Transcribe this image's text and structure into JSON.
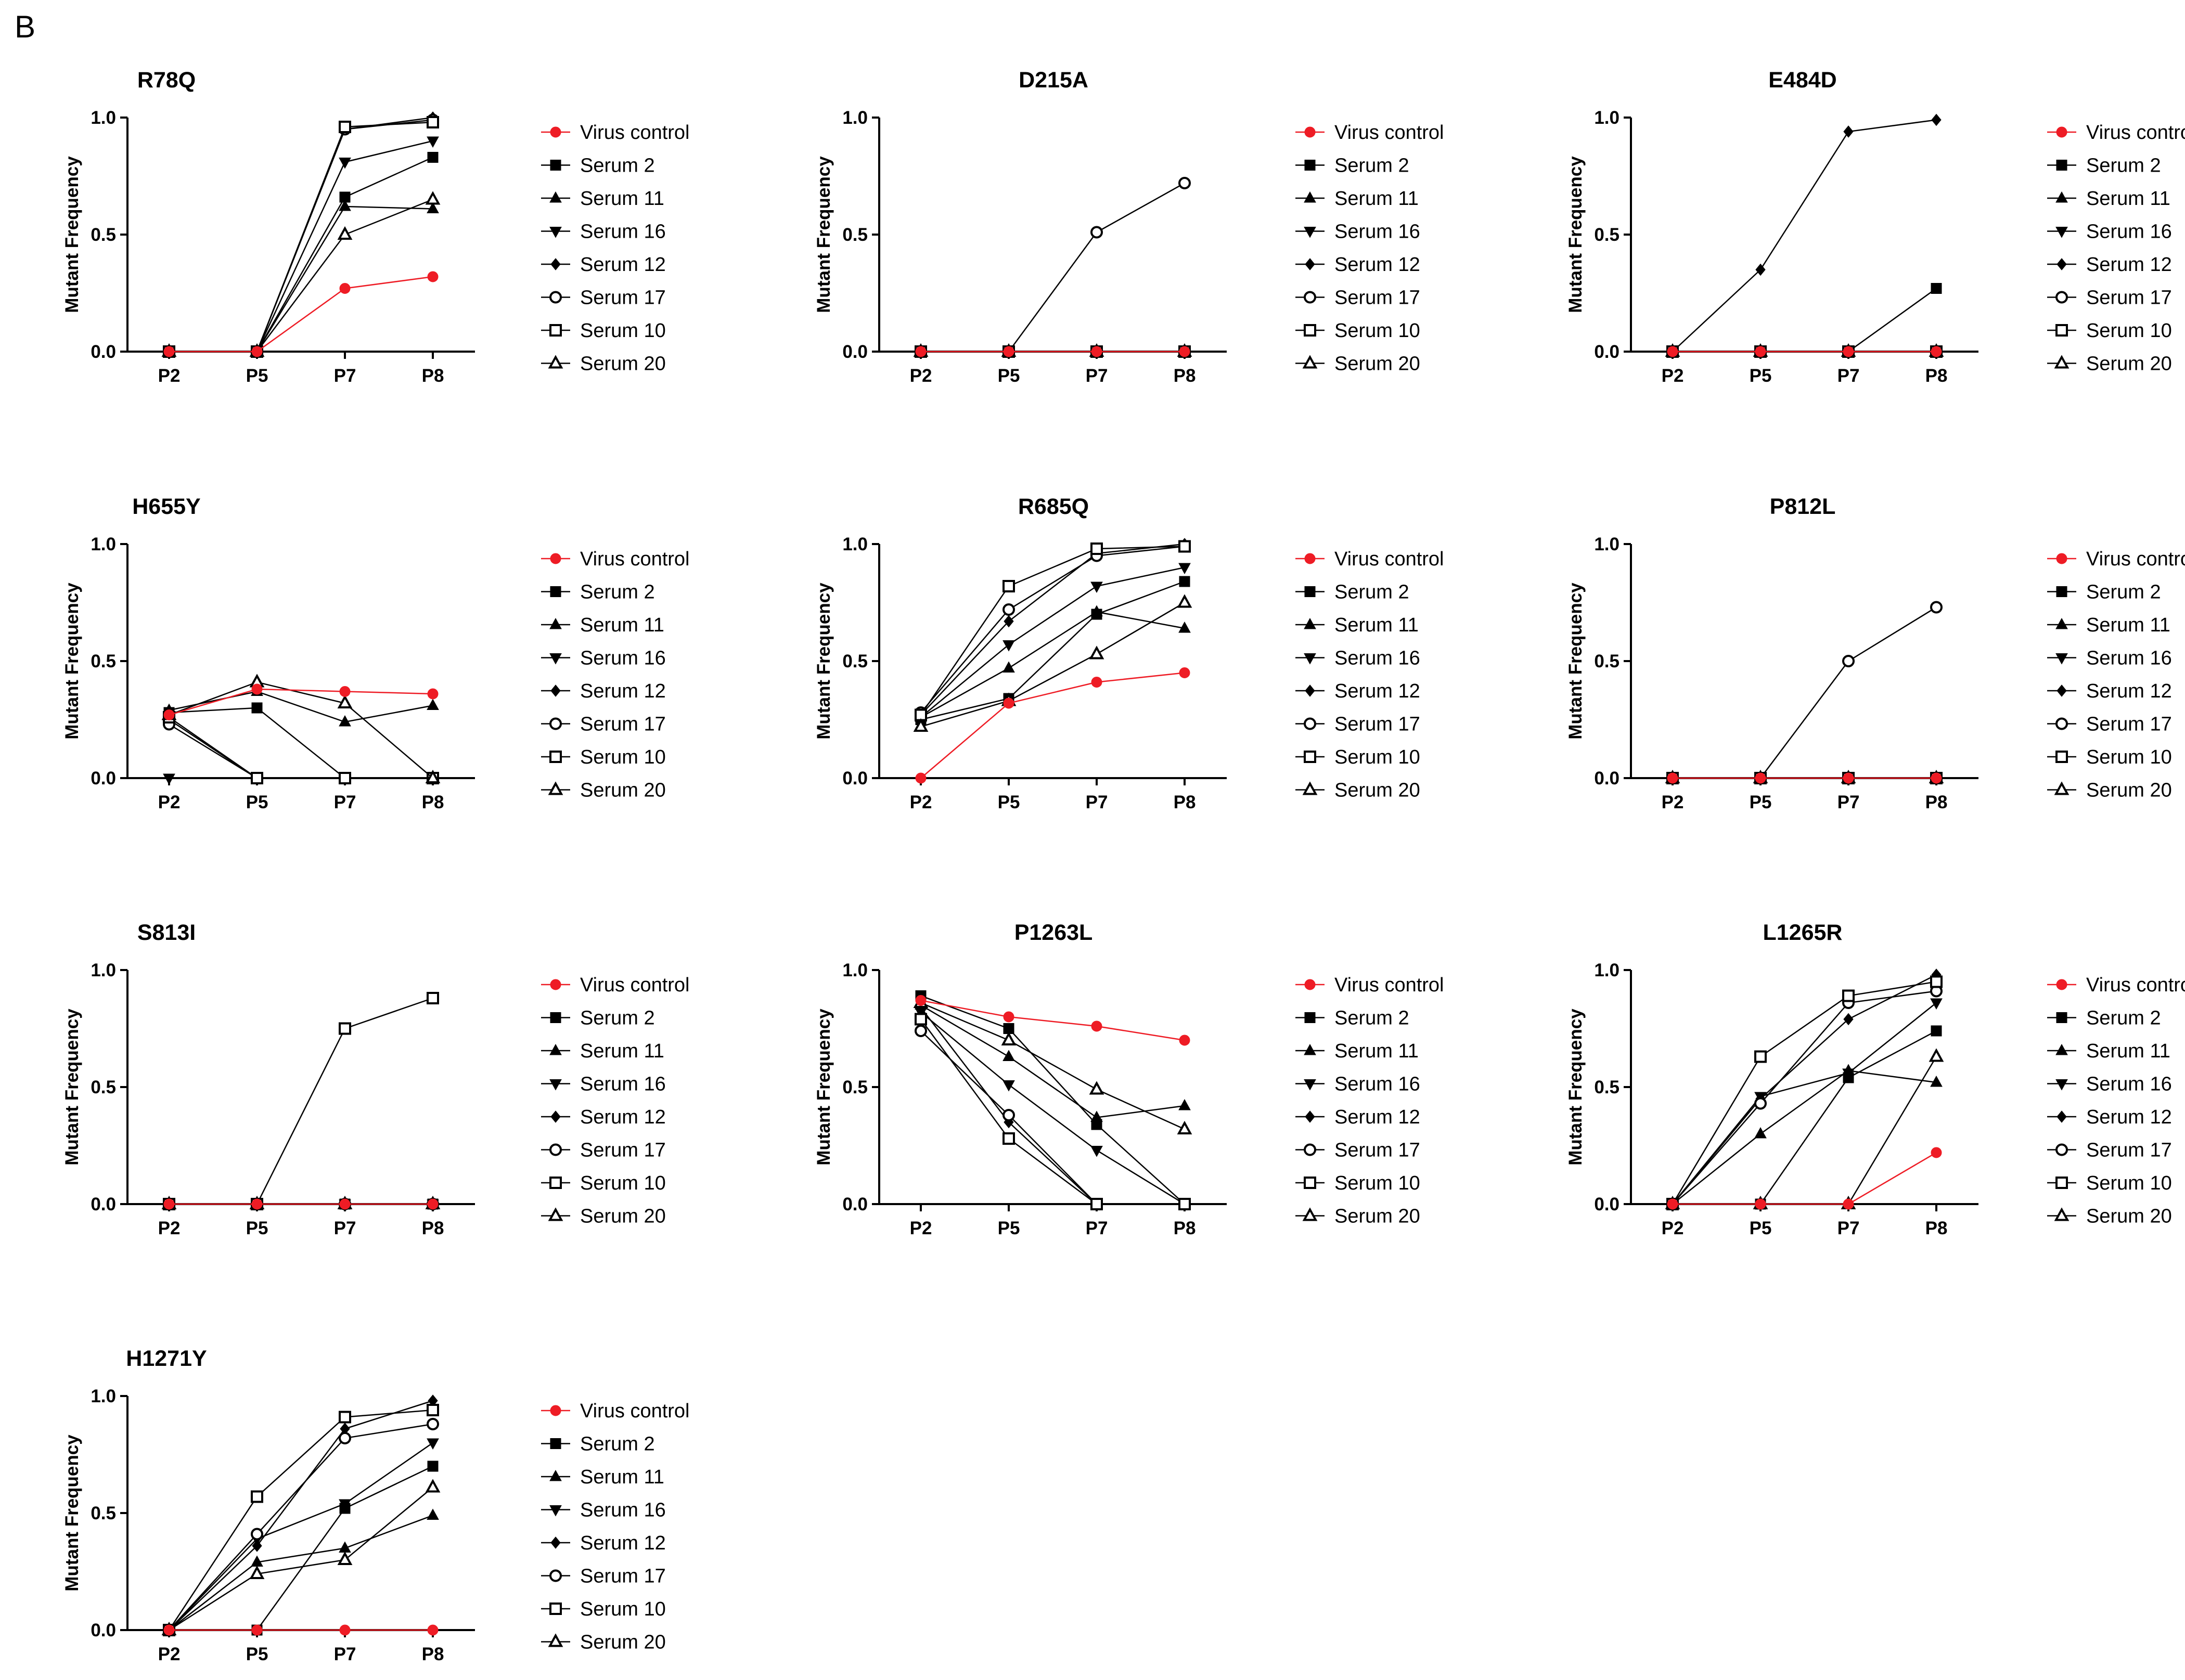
{
  "panel_label": "B",
  "colors": {
    "virus_control": "#ee1c25",
    "serum": "#000000"
  },
  "legend": [
    "Virus control",
    "Serum 2",
    "Serum 11",
    "Serum 16",
    "Serum 12",
    "Serum 17",
    "Serum 10",
    "Serum 20"
  ],
  "markers": {
    "Virus control": "circle-filled",
    "Serum 2": "square-filled",
    "Serum 11": "triangle-up-filled",
    "Serum 16": "triangle-down-filled",
    "Serum 12": "diamond-filled",
    "Serum 17": "circle-open",
    "Serum 10": "square-open",
    "Serum 20": "triangle-up-open"
  },
  "chart_data": [
    {
      "type": "line",
      "title": "R78Q",
      "x": [
        "P2",
        "P5",
        "P7",
        "P8"
      ],
      "ylabel": "Mutant Frequency",
      "ylim": [
        0,
        1
      ],
      "yticks": [
        "0.0",
        "0.5",
        "1.0"
      ],
      "series": [
        {
          "name": "Virus control",
          "values": [
            0,
            0,
            0.27,
            0.32
          ]
        },
        {
          "name": "Serum 2",
          "values": [
            0,
            0,
            0.66,
            0.83
          ]
        },
        {
          "name": "Serum 11",
          "values": [
            0,
            0,
            0.62,
            0.61
          ]
        },
        {
          "name": "Serum 16",
          "values": [
            0,
            0,
            0.81,
            0.9
          ]
        },
        {
          "name": "Serum 12",
          "values": [
            0,
            0,
            0.95,
            1.0
          ]
        },
        {
          "name": "Serum 17",
          "values": [
            0,
            0,
            0.95,
            0.99
          ]
        },
        {
          "name": "Serum 10",
          "values": [
            0,
            0,
            0.96,
            0.98
          ]
        },
        {
          "name": "Serum 20",
          "values": [
            0,
            0,
            0.5,
            0.65
          ]
        }
      ]
    },
    {
      "type": "line",
      "title": "D215A",
      "x": [
        "P2",
        "P5",
        "P7",
        "P8"
      ],
      "ylabel": "Mutant Frequency",
      "ylim": [
        0,
        1
      ],
      "yticks": [
        "0.0",
        "0.5",
        "1.0"
      ],
      "series": [
        {
          "name": "Virus control",
          "values": [
            0,
            0,
            0,
            0
          ]
        },
        {
          "name": "Serum 2",
          "values": [
            0,
            0,
            0,
            0
          ]
        },
        {
          "name": "Serum 11",
          "values": [
            0,
            0,
            0,
            0
          ]
        },
        {
          "name": "Serum 16",
          "values": [
            0,
            0,
            0,
            0
          ]
        },
        {
          "name": "Serum 12",
          "values": [
            0,
            0,
            0,
            0
          ]
        },
        {
          "name": "Serum 17",
          "values": [
            0,
            0,
            0.51,
            0.72
          ]
        },
        {
          "name": "Serum 10",
          "values": [
            0,
            0,
            0,
            0
          ]
        },
        {
          "name": "Serum 20",
          "values": [
            0,
            0,
            0,
            0
          ]
        }
      ]
    },
    {
      "type": "line",
      "title": "E484D",
      "x": [
        "P2",
        "P5",
        "P7",
        "P8"
      ],
      "ylabel": "Mutant Frequency",
      "ylim": [
        0,
        1
      ],
      "yticks": [
        "0.0",
        "0.5",
        "1.0"
      ],
      "series": [
        {
          "name": "Virus control",
          "values": [
            0,
            0,
            0,
            0
          ]
        },
        {
          "name": "Serum 2",
          "values": [
            0,
            0,
            0,
            0.27
          ]
        },
        {
          "name": "Serum 11",
          "values": [
            0,
            0,
            0,
            0
          ]
        },
        {
          "name": "Serum 16",
          "values": [
            0,
            0,
            0,
            0
          ]
        },
        {
          "name": "Serum 12",
          "values": [
            0,
            0.35,
            0.94,
            0.99
          ]
        },
        {
          "name": "Serum 17",
          "values": [
            0,
            0,
            0,
            0
          ]
        },
        {
          "name": "Serum 10",
          "values": [
            0,
            0,
            0,
            0
          ]
        },
        {
          "name": "Serum 20",
          "values": [
            0,
            0,
            0,
            0
          ]
        }
      ]
    },
    {
      "type": "line",
      "title": "H655Y",
      "x": [
        "P2",
        "P5",
        "P7",
        "P8"
      ],
      "ylabel": "Mutant Frequency",
      "ylim": [
        0,
        1
      ],
      "yticks": [
        "0.0",
        "0.5",
        "1.0"
      ],
      "series": [
        {
          "name": "Virus control",
          "values": [
            0.27,
            0.38,
            0.37,
            0.36
          ]
        },
        {
          "name": "Serum 2",
          "values": [
            0.28,
            0.3,
            0,
            0
          ]
        },
        {
          "name": "Serum 11",
          "values": [
            0.29,
            0.37,
            0.24,
            0.31
          ]
        },
        {
          "name": "Serum 16",
          "values": [
            0,
            0,
            0,
            0
          ]
        },
        {
          "name": "Serum 12",
          "values": [
            0.25,
            0,
            0,
            0
          ]
        },
        {
          "name": "Serum 17",
          "values": [
            0.23,
            0,
            0,
            0
          ]
        },
        {
          "name": "Serum 10",
          "values": [
            0.26,
            0,
            0,
            0
          ]
        },
        {
          "name": "Serum 20",
          "values": [
            0.27,
            0.41,
            0.32,
            0
          ]
        }
      ]
    },
    {
      "type": "line",
      "title": "R685Q",
      "x": [
        "P2",
        "P5",
        "P7",
        "P8"
      ],
      "ylabel": "Mutant Frequency",
      "ylim": [
        0,
        1
      ],
      "yticks": [
        "0.0",
        "0.5",
        "1.0"
      ],
      "series": [
        {
          "name": "Virus control",
          "values": [
            0,
            0.32,
            0.41,
            0.45
          ]
        },
        {
          "name": "Serum 2",
          "values": [
            0.25,
            0.34,
            0.7,
            0.84
          ]
        },
        {
          "name": "Serum 11",
          "values": [
            0.26,
            0.47,
            0.71,
            0.64
          ]
        },
        {
          "name": "Serum 16",
          "values": [
            0.26,
            0.57,
            0.82,
            0.9
          ]
        },
        {
          "name": "Serum 12",
          "values": [
            0.27,
            0.67,
            0.96,
            1.0
          ]
        },
        {
          "name": "Serum 17",
          "values": [
            0.28,
            0.72,
            0.95,
            0.99
          ]
        },
        {
          "name": "Serum 10",
          "values": [
            0.27,
            0.82,
            0.98,
            0.99
          ]
        },
        {
          "name": "Serum 20",
          "values": [
            0.22,
            0.33,
            0.53,
            0.75
          ]
        }
      ]
    },
    {
      "type": "line",
      "title": "P812L",
      "x": [
        "P2",
        "P5",
        "P7",
        "P8"
      ],
      "ylabel": "Mutant Frequency",
      "ylim": [
        0,
        1
      ],
      "yticks": [
        "0.0",
        "0.5",
        "1.0"
      ],
      "series": [
        {
          "name": "Virus control",
          "values": [
            0,
            0,
            0,
            0
          ]
        },
        {
          "name": "Serum 2",
          "values": [
            0,
            0,
            0,
            0
          ]
        },
        {
          "name": "Serum 11",
          "values": [
            0,
            0,
            0,
            0
          ]
        },
        {
          "name": "Serum 16",
          "values": [
            0,
            0,
            0,
            0
          ]
        },
        {
          "name": "Serum 12",
          "values": [
            0,
            0,
            0,
            0
          ]
        },
        {
          "name": "Serum 17",
          "values": [
            0,
            0,
            0.5,
            0.73
          ]
        },
        {
          "name": "Serum 10",
          "values": [
            0,
            0,
            0,
            0
          ]
        },
        {
          "name": "Serum 20",
          "values": [
            0,
            0,
            0,
            0
          ]
        }
      ]
    },
    {
      "type": "line",
      "title": "S813I",
      "x": [
        "P2",
        "P5",
        "P7",
        "P8"
      ],
      "ylabel": "Mutant Frequency",
      "ylim": [
        0,
        1
      ],
      "yticks": [
        "0.0",
        "0.5",
        "1.0"
      ],
      "series": [
        {
          "name": "Virus control",
          "values": [
            0,
            0,
            0,
            0
          ]
        },
        {
          "name": "Serum 2",
          "values": [
            0,
            0,
            0,
            0
          ]
        },
        {
          "name": "Serum 11",
          "values": [
            0,
            0,
            0,
            0
          ]
        },
        {
          "name": "Serum 16",
          "values": [
            0,
            0,
            0,
            0
          ]
        },
        {
          "name": "Serum 12",
          "values": [
            0,
            0,
            0,
            0
          ]
        },
        {
          "name": "Serum 17",
          "values": [
            0,
            0,
            0,
            0
          ]
        },
        {
          "name": "Serum 10",
          "values": [
            0,
            0,
            0.75,
            0.88
          ]
        },
        {
          "name": "Serum 20",
          "values": [
            0,
            0,
            0,
            0
          ]
        }
      ]
    },
    {
      "type": "line",
      "title": "P1263L",
      "x": [
        "P2",
        "P5",
        "P7",
        "P8"
      ],
      "ylabel": "Mutant Frequency",
      "ylim": [
        0,
        1
      ],
      "yticks": [
        "0.0",
        "0.5",
        "1.0"
      ],
      "series": [
        {
          "name": "Virus control",
          "values": [
            0.87,
            0.8,
            0.76,
            0.7
          ]
        },
        {
          "name": "Serum 2",
          "values": [
            0.89,
            0.75,
            0.34,
            0
          ]
        },
        {
          "name": "Serum 11",
          "values": [
            0.85,
            0.63,
            0.37,
            0.42
          ]
        },
        {
          "name": "Serum 16",
          "values": [
            0.82,
            0.51,
            0.23,
            0
          ]
        },
        {
          "name": "Serum 12",
          "values": [
            0.84,
            0.35,
            0,
            0
          ]
        },
        {
          "name": "Serum 17",
          "values": [
            0.74,
            0.38,
            0,
            0
          ]
        },
        {
          "name": "Serum 10",
          "values": [
            0.79,
            0.28,
            0,
            0
          ]
        },
        {
          "name": "Serum 20",
          "values": [
            0.86,
            0.7,
            0.49,
            0.32
          ]
        }
      ]
    },
    {
      "type": "line",
      "title": "L1265R",
      "x": [
        "P2",
        "P5",
        "P7",
        "P8"
      ],
      "ylabel": "Mutant Frequency",
      "ylim": [
        0,
        1
      ],
      "yticks": [
        "0.0",
        "0.5",
        "1.0"
      ],
      "series": [
        {
          "name": "Virus control",
          "values": [
            0,
            0,
            0,
            0.22
          ]
        },
        {
          "name": "Serum 2",
          "values": [
            0,
            0,
            0.54,
            0.74
          ]
        },
        {
          "name": "Serum 11",
          "values": [
            0,
            0.3,
            0.57,
            0.52
          ]
        },
        {
          "name": "Serum 16",
          "values": [
            0,
            0.46,
            0.56,
            0.86
          ]
        },
        {
          "name": "Serum 12",
          "values": [
            0,
            0.45,
            0.79,
            0.98
          ]
        },
        {
          "name": "Serum 17",
          "values": [
            0,
            0.43,
            0.86,
            0.91
          ]
        },
        {
          "name": "Serum 10",
          "values": [
            0,
            0.63,
            0.89,
            0.95
          ]
        },
        {
          "name": "Serum 20",
          "values": [
            0,
            0,
            0,
            0.63
          ]
        }
      ]
    },
    {
      "type": "line",
      "title": "H1271Y",
      "x": [
        "P2",
        "P5",
        "P7",
        "P8"
      ],
      "ylabel": "Mutant Frequency",
      "ylim": [
        0,
        1
      ],
      "yticks": [
        "0.0",
        "0.5",
        "1.0"
      ],
      "series": [
        {
          "name": "Virus control",
          "values": [
            0,
            0,
            0,
            0
          ]
        },
        {
          "name": "Serum 2",
          "values": [
            0,
            0,
            0.52,
            0.7
          ]
        },
        {
          "name": "Serum 11",
          "values": [
            0,
            0.29,
            0.35,
            0.49
          ]
        },
        {
          "name": "Serum 16",
          "values": [
            0,
            0.39,
            0.54,
            0.8
          ]
        },
        {
          "name": "Serum 12",
          "values": [
            0,
            0.36,
            0.86,
            0.98
          ]
        },
        {
          "name": "Serum 17",
          "values": [
            0,
            0.41,
            0.82,
            0.88
          ]
        },
        {
          "name": "Serum 10",
          "values": [
            0,
            0.57,
            0.91,
            0.94
          ]
        },
        {
          "name": "Serum 20",
          "values": [
            0,
            0.24,
            0.3,
            0.61
          ]
        }
      ]
    }
  ]
}
